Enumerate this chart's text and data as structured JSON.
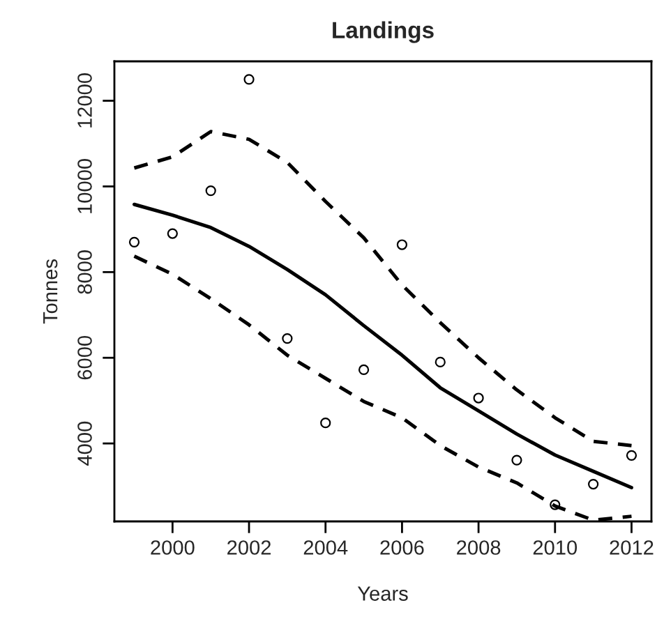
{
  "chart_data": {
    "type": "scatter",
    "title": "Landings",
    "xlabel": "Years",
    "ylabel": "Tonnes",
    "xlim": [
      1998.48,
      2012.52
    ],
    "ylim": [
      2180,
      12920
    ],
    "xticks": [
      2000,
      2002,
      2004,
      2006,
      2008,
      2010,
      2012
    ],
    "yticks": [
      4000,
      6000,
      8000,
      10000,
      12000
    ],
    "grid": false,
    "x": [
      1999,
      2000,
      2001,
      2002,
      2003,
      2004,
      2005,
      2006,
      2007,
      2008,
      2009,
      2010,
      2011,
      2012
    ],
    "series": [
      {
        "marker": "circle",
        "color": "#000000",
        "values": [
          8700,
          8900,
          9900,
          12500,
          6450,
          4480,
          5720,
          8640,
          5900,
          5060,
          3610,
          2570,
          3050,
          3720
        ]
      },
      {
        "type": "line",
        "line_style": "solid",
        "marker": "none",
        "color": "#000000",
        "values": [
          9580,
          9330,
          9040,
          8600,
          8060,
          7470,
          6750,
          6060,
          5300,
          4760,
          4220,
          3730,
          3350,
          2970
        ]
      },
      {
        "type": "line",
        "line_style": "dashed",
        "marker": "none",
        "color": "#000000",
        "values": [
          10430,
          10690,
          11280,
          11100,
          10560,
          9650,
          8800,
          7700,
          6820,
          6000,
          5250,
          4600,
          4050,
          3950
        ]
      },
      {
        "type": "line",
        "line_style": "dashed",
        "marker": "none",
        "color": "#000000",
        "values": [
          8370,
          7950,
          7380,
          6770,
          6060,
          5520,
          4980,
          4600,
          3950,
          3450,
          3080,
          2540,
          2210,
          2300
        ]
      }
    ]
  }
}
